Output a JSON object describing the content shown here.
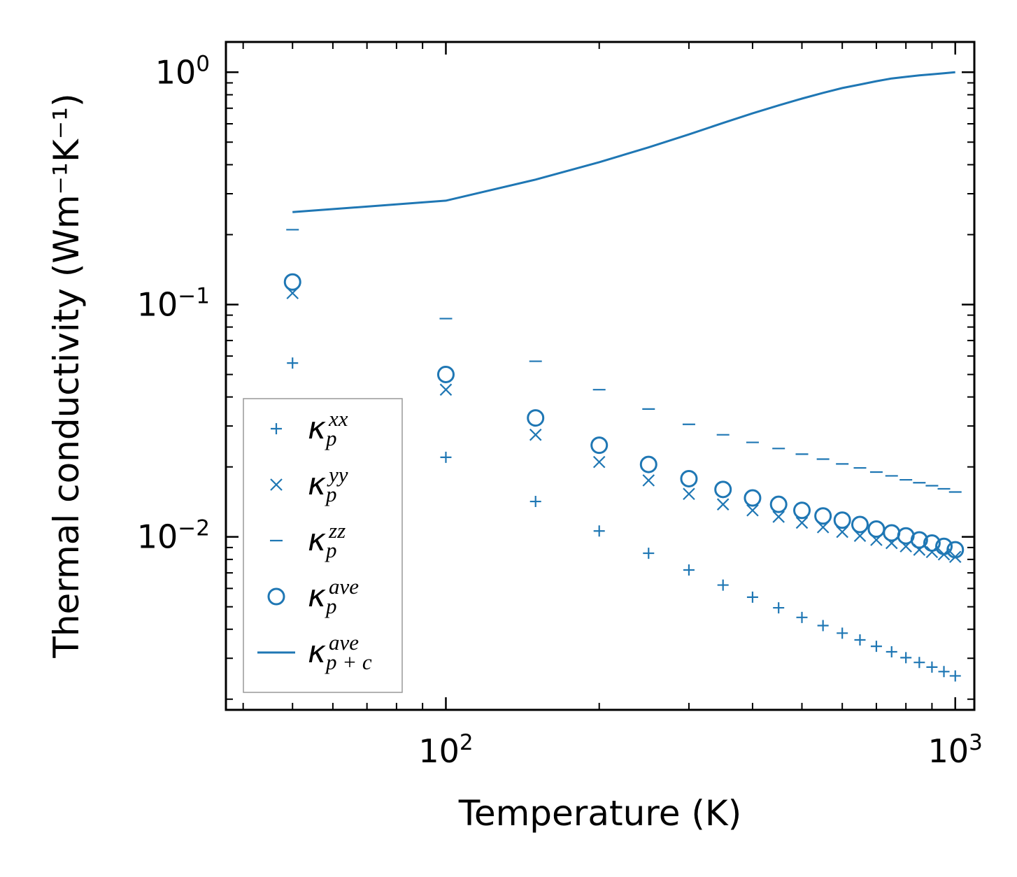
{
  "chart_data": {
    "type": "scatter",
    "xscale": "log",
    "yscale": "log",
    "xlabel": "Temperature (K)",
    "ylabel": "Thermal conductivity (Wm⁻¹K⁻¹)",
    "xlim": [
      37,
      1090
    ],
    "ylim": [
      0.0018,
      1.35
    ],
    "color": "#1f77b4",
    "x_ticks": [
      {
        "value": 100,
        "base": "10",
        "exp": "2"
      },
      {
        "value": 1000,
        "base": "10",
        "exp": "3"
      }
    ],
    "y_ticks": [
      {
        "value": 0.01,
        "base": "10",
        "exp": "−2"
      },
      {
        "value": 0.1,
        "base": "10",
        "exp": "−1"
      },
      {
        "value": 1,
        "base": "10",
        "exp": "0"
      }
    ],
    "x": [
      50,
      100,
      150,
      200,
      250,
      300,
      350,
      400,
      450,
      500,
      550,
      600,
      650,
      700,
      750,
      800,
      850,
      900,
      950,
      1000
    ],
    "series": [
      {
        "name": "kappa_p_xx",
        "marker": "plus",
        "symbol": "κ",
        "sub": "p",
        "sup": "xx",
        "values": [
          0.056,
          0.022,
          0.0142,
          0.0106,
          0.0085,
          0.0072,
          0.0062,
          0.0055,
          0.00495,
          0.0045,
          0.00415,
          0.00385,
          0.0036,
          0.00338,
          0.0032,
          0.00302,
          0.00288,
          0.00275,
          0.00263,
          0.00252
        ]
      },
      {
        "name": "kappa_p_yy",
        "marker": "x",
        "symbol": "κ",
        "sub": "p",
        "sup": "yy",
        "values": [
          0.112,
          0.043,
          0.0275,
          0.021,
          0.0175,
          0.0153,
          0.0138,
          0.013,
          0.0122,
          0.0115,
          0.011,
          0.0105,
          0.0101,
          0.0097,
          0.0094,
          0.0091,
          0.0088,
          0.0086,
          0.0084,
          0.0082
        ]
      },
      {
        "name": "kappa_p_zz",
        "marker": "hline",
        "symbol": "κ",
        "sub": "p",
        "sup": "zz",
        "values": [
          0.21,
          0.087,
          0.057,
          0.043,
          0.0355,
          0.0305,
          0.0275,
          0.0255,
          0.024,
          0.0227,
          0.0216,
          0.0206,
          0.0198,
          0.019,
          0.0183,
          0.0176,
          0.0171,
          0.0166,
          0.0161,
          0.0156
        ]
      },
      {
        "name": "kappa_p_ave",
        "marker": "circle",
        "symbol": "κ",
        "sub": "p",
        "sup": "ave",
        "values": [
          0.125,
          0.05,
          0.0325,
          0.0248,
          0.0205,
          0.0178,
          0.016,
          0.0147,
          0.0138,
          0.013,
          0.0123,
          0.0118,
          0.0113,
          0.0108,
          0.0104,
          0.0101,
          0.0097,
          0.0094,
          0.0091,
          0.0088
        ]
      },
      {
        "name": "kappa_pc_ave",
        "marker": "line",
        "symbol": "κ",
        "sub": "p + c",
        "sup": "ave",
        "values": [
          0.25,
          0.28,
          0.345,
          0.41,
          0.475,
          0.54,
          0.605,
          0.665,
          0.72,
          0.77,
          0.815,
          0.855,
          0.885,
          0.915,
          0.94,
          0.955,
          0.97,
          0.98,
          0.99,
          1.0
        ]
      }
    ],
    "legend_position": "lower-left"
  }
}
